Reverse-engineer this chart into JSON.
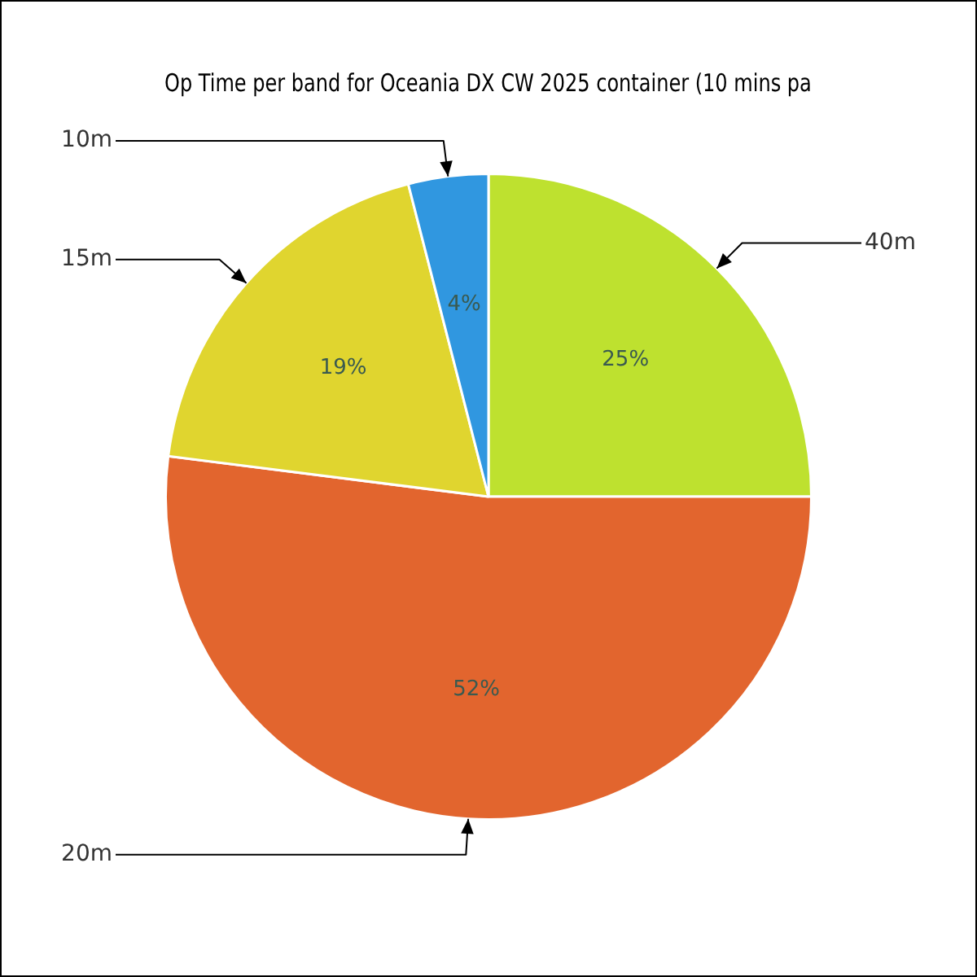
{
  "chart_data": {
    "type": "pie",
    "title": "Op Time per band for Oceania DX CW 2025 container (10 mins pa",
    "categories": [
      "40m",
      "20m",
      "15m",
      "10m"
    ],
    "values": [
      25,
      52,
      19,
      4
    ],
    "colors": [
      "#bee12f",
      "#e2652e",
      "#e0d52f",
      "#3097e0"
    ],
    "value_labels": [
      "25%",
      "52%",
      "19%",
      "4%"
    ],
    "legend": false
  }
}
